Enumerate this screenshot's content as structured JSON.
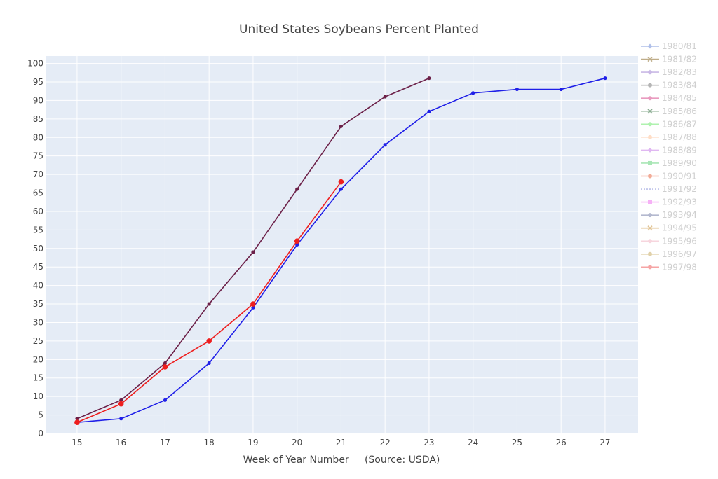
{
  "chart_data": {
    "type": "line",
    "title": "United States Soybeans Percent Planted",
    "xlabel": "Week of Year Number     (Source: USDA)",
    "ylabel": "",
    "xlim": [
      14.3,
      27.75
    ],
    "ylim": [
      0,
      102
    ],
    "xticks": [
      15,
      16,
      17,
      18,
      19,
      20,
      21,
      22,
      23,
      24,
      25,
      26,
      27
    ],
    "yticks": [
      0,
      5,
      10,
      15,
      20,
      25,
      30,
      35,
      40,
      45,
      50,
      55,
      60,
      65,
      70,
      75,
      80,
      85,
      90,
      95,
      100
    ],
    "grid": true,
    "legend_position": "right",
    "plot_background": "#e5ecf6",
    "series": [
      {
        "name": "1980/81",
        "color": "#6f8bd8",
        "marker": "diamond",
        "visible": false,
        "x": [],
        "y": []
      },
      {
        "name": "1981/82",
        "color": "#8b6b2a",
        "marker": "x",
        "visible": false,
        "x": [],
        "y": []
      },
      {
        "name": "1982/83",
        "color": "#9d7fd1",
        "marker": "diamond",
        "visible": false,
        "x": [],
        "y": []
      },
      {
        "name": "1983/84",
        "color": "#7a7a7a",
        "marker": "circle",
        "visible": false,
        "x": [],
        "y": []
      },
      {
        "name": "1984/85",
        "color": "#d84a8b",
        "marker": "circle",
        "visible": false,
        "x": [],
        "y": []
      },
      {
        "name": "1985/86",
        "color": "#2e6b3a",
        "marker": "x",
        "visible": false,
        "x": [],
        "y": []
      },
      {
        "name": "1986/87",
        "color": "#6ee86e",
        "marker": "circle",
        "visible": false,
        "x": [],
        "y": []
      },
      {
        "name": "1987/88",
        "color": "#ffc49a",
        "marker": "circle",
        "visible": false,
        "x": [],
        "y": []
      },
      {
        "name": "1988/89",
        "color": "#c77fe8",
        "marker": "diamond",
        "visible": false,
        "x": [],
        "y": []
      },
      {
        "name": "1989/90",
        "color": "#62d27a",
        "marker": "square",
        "visible": false,
        "x": [],
        "y": []
      },
      {
        "name": "1990/91",
        "color": "#e86a45",
        "marker": "circle",
        "visible": false,
        "x": [],
        "y": []
      },
      {
        "name": "1991/92",
        "color": "#8590d8",
        "marker": "none",
        "visible": false,
        "x": [],
        "y": []
      },
      {
        "name": "1992/93",
        "color": "#ef72ef",
        "marker": "square",
        "visible": false,
        "x": [],
        "y": []
      },
      {
        "name": "1993/94",
        "color": "#7880a8",
        "marker": "circle",
        "visible": false,
        "x": [],
        "y": []
      },
      {
        "name": "1994/95",
        "color": "#c8923a",
        "marker": "x",
        "visible": false,
        "x": [],
        "y": []
      },
      {
        "name": "1995/96",
        "color": "#f2b6c4",
        "marker": "circle",
        "visible": false,
        "x": [],
        "y": []
      },
      {
        "name": "1996/97",
        "color": "#c9ac64",
        "marker": "circle",
        "visible": false,
        "x": [],
        "y": []
      },
      {
        "name": "1997/98",
        "color": "#ef5c5c",
        "marker": "circle",
        "visible": false,
        "x": [],
        "y": []
      }
    ],
    "visible_series": [
      {
        "color": "#1f1fe8",
        "marker_size": 4.5,
        "x": [
          15,
          16,
          17,
          18,
          19,
          20,
          21,
          22,
          23,
          24,
          25,
          26,
          27
        ],
        "y": [
          3,
          4,
          9,
          19,
          34,
          51,
          66,
          78,
          87,
          92,
          93,
          93,
          96
        ]
      },
      {
        "color": "#6b1f47",
        "marker_size": 4.5,
        "x": [
          15,
          16,
          17,
          18,
          19,
          20,
          21,
          22,
          23
        ],
        "y": [
          4,
          9,
          19,
          35,
          49,
          66,
          83,
          91,
          96
        ]
      },
      {
        "color": "#ee1e1e",
        "marker_size": 7,
        "x": [
          15,
          16,
          17,
          18,
          19,
          20,
          21
        ],
        "y": [
          3,
          8,
          18,
          25,
          35,
          52,
          68
        ]
      }
    ]
  }
}
